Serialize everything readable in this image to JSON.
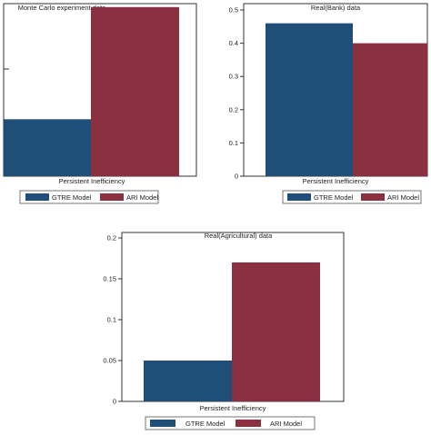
{
  "colors": {
    "gtre": "#1f4e79",
    "ari": "#8b3040"
  },
  "chart_data": [
    {
      "type": "bar",
      "title": "Monte Carlo experiment data",
      "xlabel": "Persistent Inefficiency",
      "ylabel": "",
      "ylim": [
        0,
        1
      ],
      "yticks": [],
      "legend_position": "bottom",
      "series": [
        {
          "name": "GTRE Model",
          "values": [
            0.33
          ]
        },
        {
          "name": "ARI Model",
          "values": [
            0.98
          ]
        }
      ]
    },
    {
      "type": "bar",
      "title": "Real(Bank) data",
      "xlabel": "Persistent Inefficiency",
      "ylabel": "",
      "ylim": [
        0,
        0.5
      ],
      "yticks": [
        "0",
        "0.1",
        "0.2",
        "0.3",
        "0.4",
        "0.5"
      ],
      "legend_position": "bottom",
      "series": [
        {
          "name": "GTRE Model",
          "values": [
            0.46
          ]
        },
        {
          "name": "ARI Model",
          "values": [
            0.4
          ]
        }
      ]
    },
    {
      "type": "bar",
      "title": "Real(Agricultural)  data",
      "xlabel": "Persistent Inefficiency",
      "ylabel": "",
      "ylim": [
        0,
        0.2
      ],
      "yticks": [
        "0",
        "0.05",
        "0.1",
        "0.15",
        "0.2"
      ],
      "legend_position": "bottom",
      "series": [
        {
          "name": "GTRE Model",
          "values": [
            0.05
          ]
        },
        {
          "name": "ARI Model",
          "values": [
            0.17
          ]
        }
      ]
    }
  ]
}
